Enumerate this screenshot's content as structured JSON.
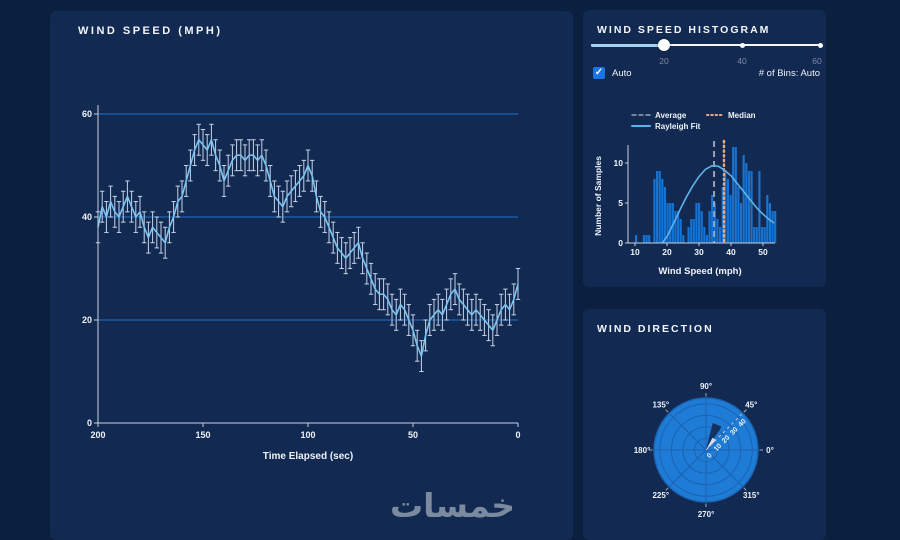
{
  "colors": {
    "page_bg": "#0b1f3e",
    "panel_bg": "#122a52",
    "bar_blue": "#1673d2",
    "line_blue": "#7cc4f0",
    "error_bar": "#c4d3e8",
    "grid_blue": "#1d64b4",
    "axis": "#c7d0dd",
    "text": "#eef2f8",
    "muted_text": "#7d8aa3",
    "median_orange": "#eaa87e",
    "average_gray": "#97a2b6",
    "rayleigh_blue": "#5fb3ea",
    "polar_fill": "#1e7cd6",
    "polar_grid": "#1a63b2",
    "wedge_dark": "#15315e",
    "wedge_light": "#cfdff2",
    "checkbox_blue": "#1976e8",
    "slider_fill": "#a6d2f0"
  },
  "wind_speed_panel": {
    "title": "WIND SPEED (MPH)"
  },
  "histogram_panel": {
    "title": "WIND SPEED HISTOGRAM",
    "slider": {
      "labels": [
        "20",
        "40",
        "60"
      ],
      "value": 20,
      "max": 60
    },
    "auto_label": "Auto",
    "bins_label": "# of Bins: Auto"
  },
  "wind_direction_panel": {
    "title": "WIND DIRECTION"
  },
  "watermark": "خمسات",
  "chart_data": [
    {
      "type": "line",
      "name": "wind-speed-vs-time",
      "xlabel": "Time Elapsed (sec)",
      "ylabel": "",
      "x_ticks": [
        200,
        150,
        100,
        50,
        0
      ],
      "y_ticks": [
        0,
        20,
        40,
        60
      ],
      "xlim": [
        200,
        0
      ],
      "ylim": [
        0,
        60
      ],
      "x_axis_reversed": true,
      "grid": "horizontal",
      "error_bar": 3,
      "x": [
        200,
        198,
        196,
        194,
        192,
        190,
        188,
        186,
        184,
        182,
        180,
        178,
        176,
        174,
        172,
        170,
        168,
        166,
        164,
        162,
        160,
        158,
        156,
        154,
        152,
        150,
        148,
        146,
        144,
        142,
        140,
        138,
        136,
        134,
        132,
        130,
        128,
        126,
        124,
        122,
        120,
        118,
        116,
        114,
        112,
        110,
        108,
        106,
        104,
        102,
        100,
        98,
        96,
        94,
        92,
        90,
        88,
        86,
        84,
        82,
        80,
        78,
        76,
        74,
        72,
        70,
        68,
        66,
        64,
        62,
        60,
        58,
        56,
        54,
        52,
        50,
        48,
        46,
        44,
        42,
        40,
        38,
        36,
        34,
        32,
        30,
        28,
        26,
        24,
        22,
        20,
        18,
        16,
        14,
        12,
        10,
        8,
        6,
        4,
        2,
        0
      ],
      "y": [
        38,
        42,
        40,
        43,
        41,
        40,
        42,
        44,
        42,
        40,
        41,
        38,
        36,
        38,
        37,
        36,
        35,
        38,
        40,
        43,
        44,
        47,
        50,
        53,
        55,
        54,
        53,
        55,
        52,
        50,
        47,
        49,
        51,
        52,
        52,
        51,
        52,
        52,
        51,
        52,
        50,
        47,
        44,
        43,
        42,
        44,
        45,
        46,
        47,
        48,
        50,
        48,
        44,
        41,
        40,
        38,
        36,
        34,
        33,
        32,
        33,
        34,
        35,
        32,
        30,
        28,
        26,
        25,
        25,
        24,
        22,
        21,
        23,
        22,
        20,
        18,
        15,
        13,
        17,
        20,
        21,
        22,
        21,
        23,
        25,
        26,
        24,
        23,
        22,
        21,
        22,
        21,
        20,
        19,
        18,
        20,
        22,
        23,
        22,
        24,
        27
      ]
    },
    {
      "type": "bar",
      "name": "wind-speed-histogram",
      "xlabel": "Wind Speed (mph)",
      "ylabel": "Number of Samples",
      "x_ticks": [
        10,
        20,
        30,
        40,
        50
      ],
      "y_ticks": [
        0,
        5,
        10
      ],
      "xlim": [
        9,
        55
      ],
      "ylim": [
        0,
        12.5
      ],
      "bin_start": 10,
      "bin_width": 0.82,
      "values": [
        1,
        0,
        0,
        1,
        1,
        1,
        0,
        8,
        9,
        9,
        8,
        7,
        5,
        5,
        5,
        4,
        4,
        3,
        1,
        0,
        2,
        3,
        3,
        5,
        5,
        4,
        2,
        1,
        4,
        6,
        5,
        3,
        2,
        7,
        9,
        8,
        6,
        12,
        12,
        7,
        5,
        11,
        10,
        9,
        9,
        2,
        2,
        9,
        2,
        2,
        6,
        5,
        4,
        4
      ],
      "average": 34.7,
      "median": 37.8,
      "legend": [
        {
          "label": "Average",
          "style": "dashed"
        },
        {
          "label": "Median",
          "style": "dotted"
        },
        {
          "label": "Rayleigh Fit",
          "style": "solid"
        }
      ],
      "rayleigh_fit": {
        "x": [
          18.5,
          20,
          22,
          24,
          26,
          28,
          30,
          32,
          34,
          36,
          38,
          40,
          42,
          44,
          46,
          48,
          50,
          52,
          53.5
        ],
        "y": [
          0,
          0.8,
          2.4,
          4.1,
          5.7,
          7.1,
          8.3,
          9.2,
          9.65,
          9.6,
          9.1,
          8.4,
          7.4,
          6.4,
          5.4,
          4.4,
          3.6,
          2.9,
          2.5
        ]
      }
    },
    {
      "type": "polar-bar",
      "name": "wind-direction-rose",
      "angle_ticks_deg": [
        0,
        45,
        90,
        135,
        180,
        225,
        270,
        315
      ],
      "angle_labels": [
        "0°",
        "45°",
        "90°",
        "135°",
        "180°",
        "225°",
        "270°",
        "315°"
      ],
      "radial_ticks": [
        0,
        10,
        20,
        30,
        40
      ],
      "rmax": 45,
      "wedges": [
        {
          "start_deg": 56,
          "end_deg": 76,
          "r": 24,
          "fill": "dark"
        },
        {
          "start_deg": 44,
          "end_deg": 62,
          "r": 12,
          "fill": "light"
        }
      ]
    }
  ]
}
